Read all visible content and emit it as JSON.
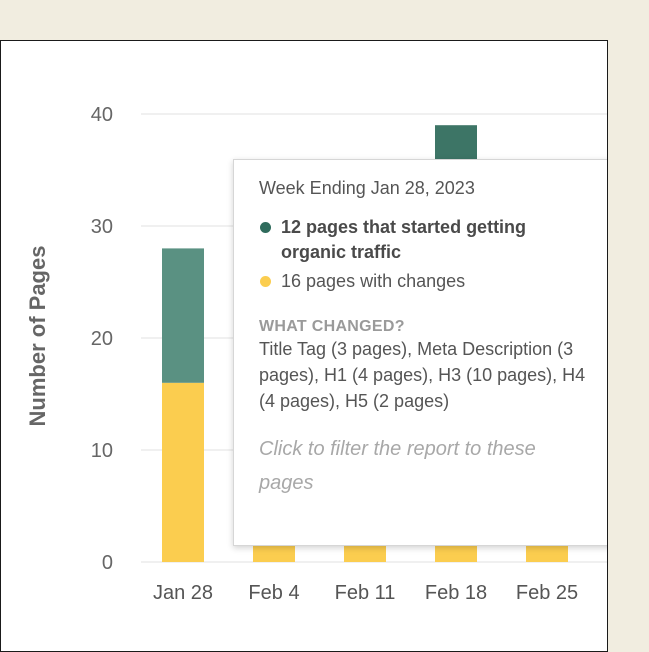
{
  "chart_data": {
    "type": "bar",
    "stacked": true,
    "ylabel": "Number of Pages",
    "ylim": [
      0,
      40
    ],
    "yticks": [
      0,
      10,
      20,
      30,
      40
    ],
    "categories": [
      "Jan 28",
      "Feb 4",
      "Feb 11",
      "Feb 18",
      "Feb 25"
    ],
    "series": [
      {
        "name": "pages with changes",
        "color": "#fbcd4f",
        "values": [
          16,
          2,
          2,
          2,
          2
        ]
      },
      {
        "name": "pages that started getting organic traffic",
        "color": "#5a9182",
        "values": [
          12,
          null,
          null,
          37,
          null
        ]
      }
    ],
    "highlight_color": "#3d7566",
    "grid": true
  },
  "tooltip": {
    "title": "Week Ending Jan 28, 2023",
    "line1": "12 pages that started getting organic traffic",
    "line1_color": "#2f6b5c",
    "line2": "16 pages with changes",
    "line2_color": "#fbcd4f",
    "heading": "WHAT CHANGED?",
    "body": "Title Tag (3 pages), Meta Description (3 pages), H1 (4 pages), H3 (10 pages), H4 (4 pages), H5 (2 pages)",
    "link": "Click to filter the report to these pages"
  }
}
